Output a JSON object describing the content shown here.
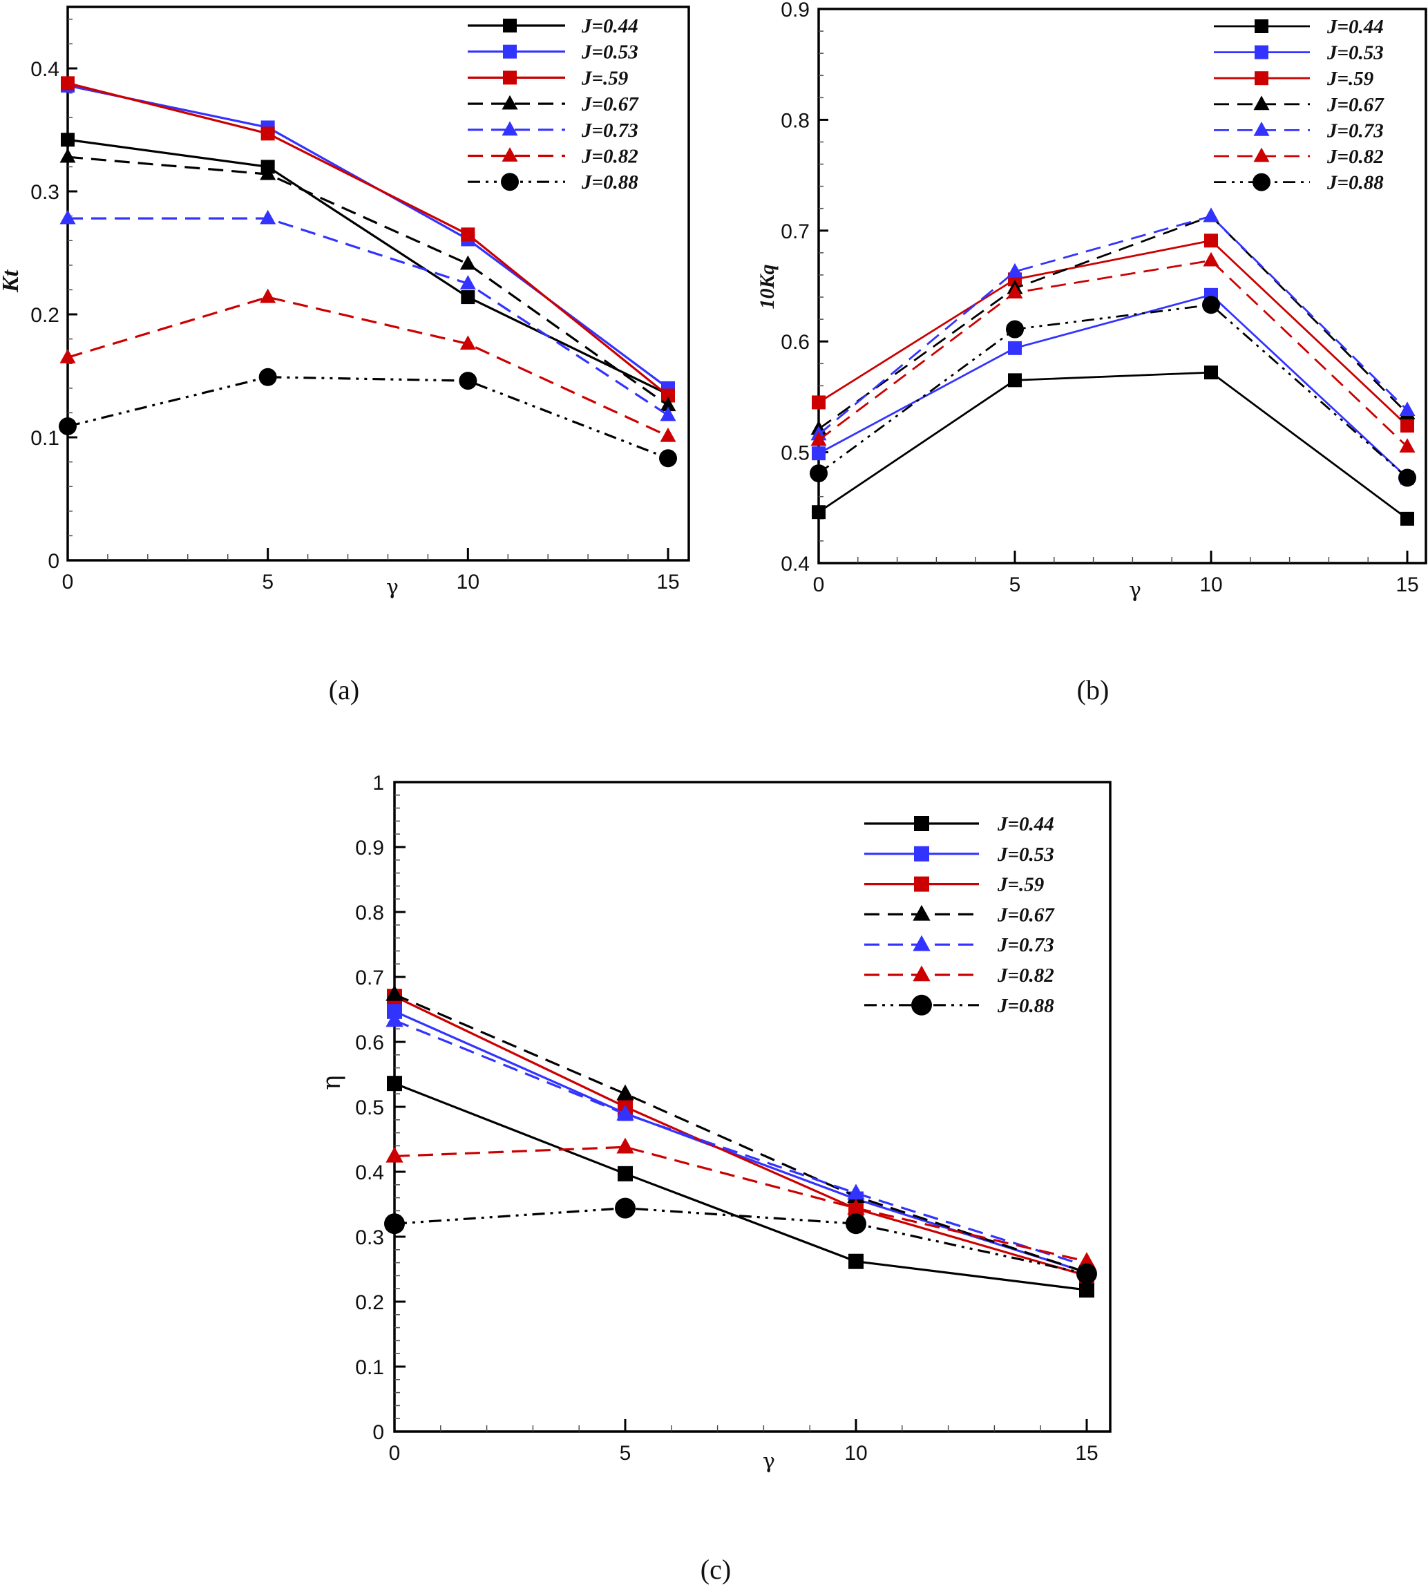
{
  "legend_labels": [
    "J=0.44",
    "J=0.53",
    "J=.59",
    "J=0.67",
    "J=0.73",
    "J=0.82",
    "J=0.88"
  ],
  "series_styles": [
    {
      "name": "J=0.44",
      "color": "#000000",
      "dash": "solid",
      "marker": "square"
    },
    {
      "name": "J=0.53",
      "color": "#3333ff",
      "dash": "solid",
      "marker": "square"
    },
    {
      "name": "J=.59",
      "color": "#cc0000",
      "dash": "solid",
      "marker": "square"
    },
    {
      "name": "J=0.67",
      "color": "#000000",
      "dash": "dashed",
      "marker": "triangle"
    },
    {
      "name": "J=0.73",
      "color": "#3333ff",
      "dash": "dashed",
      "marker": "triangle"
    },
    {
      "name": "J=0.82",
      "color": "#cc0000",
      "dash": "dashed",
      "marker": "triangle"
    },
    {
      "name": "J=0.88",
      "color": "#000000",
      "dash": "dashdotdot",
      "marker": "circle"
    }
  ],
  "chart_data": [
    {
      "id": "a",
      "type": "line",
      "caption": "(a)",
      "xlabel": "γ",
      "ylabel": "Kt",
      "xlim": [
        0,
        15.5
      ],
      "ylim": [
        0,
        0.45
      ],
      "x_ticks": [
        0,
        5,
        10,
        15
      ],
      "x_tick_labels": [
        "0",
        "5",
        "10",
        "15"
      ],
      "y_ticks": [
        0,
        0.1,
        0.2,
        0.3,
        0.4
      ],
      "y_tick_labels": [
        "0",
        "0.1",
        "0.2",
        "0.3",
        "0.4"
      ],
      "legend_position": "top-right",
      "x": [
        0,
        5,
        10,
        15
      ],
      "series": [
        {
          "name": "J=0.44",
          "values": [
            0.342,
            0.32,
            0.214,
            0.135
          ]
        },
        {
          "name": "J=0.53",
          "values": [
            0.386,
            0.352,
            0.261,
            0.14
          ]
        },
        {
          "name": "J=.59",
          "values": [
            0.388,
            0.347,
            0.265,
            0.134
          ]
        },
        {
          "name": "J=0.67",
          "values": [
            0.328,
            0.314,
            0.241,
            0.126
          ]
        },
        {
          "name": "J=0.73",
          "values": [
            0.278,
            0.278,
            0.225,
            0.118
          ]
        },
        {
          "name": "J=0.82",
          "values": [
            0.165,
            0.214,
            0.176,
            0.101
          ]
        },
        {
          "name": "J=0.88",
          "values": [
            0.109,
            0.149,
            0.146,
            0.083
          ]
        }
      ]
    },
    {
      "id": "b",
      "type": "line",
      "caption": "(b)",
      "xlabel": "γ",
      "ylabel": "10Kq",
      "xlim": [
        0,
        15.5
      ],
      "ylim": [
        0.4,
        0.9
      ],
      "x_ticks": [
        0,
        5,
        10,
        15
      ],
      "x_tick_labels": [
        "0",
        "5",
        "10",
        "15"
      ],
      "y_ticks": [
        0.4,
        0.5,
        0.6,
        0.7,
        0.8,
        0.9
      ],
      "y_tick_labels": [
        "0.4",
        "0.5",
        "0.6",
        "0.7",
        "0.8",
        "0.9"
      ],
      "legend_position": "top-right",
      "x": [
        0,
        5,
        10,
        15
      ],
      "series": [
        {
          "name": "J=0.44",
          "values": [
            0.446,
            0.565,
            0.572,
            0.44
          ]
        },
        {
          "name": "J=0.53",
          "values": [
            0.499,
            0.594,
            0.642,
            0.477
          ]
        },
        {
          "name": "J=.59",
          "values": [
            0.545,
            0.656,
            0.691,
            0.524
          ]
        },
        {
          "name": "J=0.67",
          "values": [
            0.521,
            0.648,
            0.713,
            0.535
          ]
        },
        {
          "name": "J=0.73",
          "values": [
            0.516,
            0.663,
            0.713,
            0.538
          ]
        },
        {
          "name": "J=0.82",
          "values": [
            0.511,
            0.644,
            0.673,
            0.505
          ]
        },
        {
          "name": "J=0.88",
          "values": [
            0.481,
            0.611,
            0.633,
            0.477
          ]
        }
      ]
    },
    {
      "id": "c",
      "type": "line",
      "caption": "(c)",
      "xlabel": "γ",
      "ylabel": "η",
      "xlim": [
        0,
        15.5
      ],
      "ylim": [
        0,
        1
      ],
      "x_ticks": [
        0,
        5,
        10,
        15
      ],
      "x_tick_labels": [
        "0",
        "5",
        "10",
        "15"
      ],
      "y_ticks": [
        0,
        0.1,
        0.2,
        0.3,
        0.4,
        0.5,
        0.6,
        0.7,
        0.8,
        0.9,
        1
      ],
      "y_tick_labels": [
        "0",
        "0.1",
        "0.2",
        "0.3",
        "0.4",
        "0.5",
        "0.6",
        "0.7",
        "0.8",
        "0.9",
        "1"
      ],
      "legend_position": "top-right",
      "x": [
        0,
        5,
        10,
        15
      ],
      "series": [
        {
          "name": "J=0.44",
          "values": [
            0.536,
            0.397,
            0.262,
            0.218
          ]
        },
        {
          "name": "J=0.53",
          "values": [
            0.647,
            0.49,
            0.358,
            0.245
          ]
        },
        {
          "name": "J=.59",
          "values": [
            0.67,
            0.5,
            0.343,
            0.24
          ]
        },
        {
          "name": "J=0.67",
          "values": [
            0.673,
            0.52,
            0.362,
            0.245
          ]
        },
        {
          "name": "J=0.73",
          "values": [
            0.633,
            0.489,
            0.367,
            0.255
          ]
        },
        {
          "name": "J=0.82",
          "values": [
            0.424,
            0.438,
            0.344,
            0.262
          ]
        },
        {
          "name": "J=0.88",
          "values": [
            0.32,
            0.344,
            0.32,
            0.243
          ]
        }
      ]
    }
  ]
}
